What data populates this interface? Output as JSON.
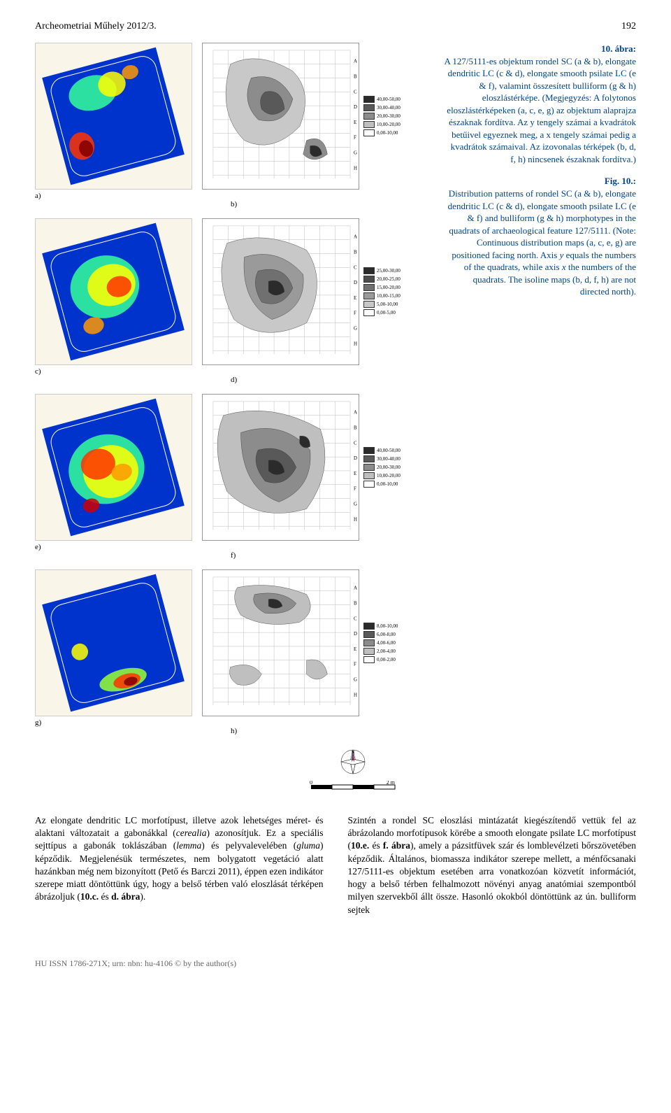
{
  "header": {
    "journal": "Archeometriai Műhely 2012/3.",
    "page": "192"
  },
  "panels": {
    "a": {
      "label": "a)",
      "bg": "#f9f5e9"
    },
    "b": {
      "label": "b)",
      "legend": [
        {
          "c": "#2b2b2b",
          "t": "40,00-50,00"
        },
        {
          "c": "#595959",
          "t": "30,00-40,00"
        },
        {
          "c": "#8c8c8c",
          "t": "20,00-30,00"
        },
        {
          "c": "#bfbfbf",
          "t": "10,00-20,00"
        },
        {
          "c": "#ffffff",
          "t": "0,00-10,00"
        }
      ]
    },
    "c": {
      "label": "c)",
      "bg": "#f9f5e9"
    },
    "d": {
      "label": "d)",
      "legend": [
        {
          "c": "#2b2b2b",
          "t": "25,00-30,00"
        },
        {
          "c": "#4d4d4d",
          "t": "20,00-25,00"
        },
        {
          "c": "#707070",
          "t": "15,00-20,00"
        },
        {
          "c": "#9a9a9a",
          "t": "10,00-15,00"
        },
        {
          "c": "#c8c8c8",
          "t": "5,00-10,00"
        },
        {
          "c": "#ffffff",
          "t": "0,00-5,00"
        }
      ]
    },
    "e": {
      "label": "e)",
      "bg": "#f9f5e9"
    },
    "f": {
      "label": "f)",
      "legend": [
        {
          "c": "#2b2b2b",
          "t": "40,00-50,00"
        },
        {
          "c": "#595959",
          "t": "30,00-40,00"
        },
        {
          "c": "#8c8c8c",
          "t": "20,00-30,00"
        },
        {
          "c": "#bfbfbf",
          "t": "10,00-20,00"
        },
        {
          "c": "#ffffff",
          "t": "0,00-10,00"
        }
      ]
    },
    "g": {
      "label": "g)",
      "bg": "#f9f5e9"
    },
    "h": {
      "label": "h)",
      "legend": [
        {
          "c": "#2b2b2b",
          "t": "8,00-10,00"
        },
        {
          "c": "#595959",
          "t": "6,00-8,00"
        },
        {
          "c": "#8c8c8c",
          "t": "4,00-6,00"
        },
        {
          "c": "#bfbfbf",
          "t": "2,00-4,00"
        },
        {
          "c": "#ffffff",
          "t": "0,00-2,00"
        }
      ]
    }
  },
  "heatmap_palette": [
    "#000080",
    "#0033cc",
    "#0066ff",
    "#0099ff",
    "#00ccff",
    "#33ff99",
    "#99ff33",
    "#ffff00",
    "#ff9900",
    "#ff3300",
    "#cc0000",
    "#800000"
  ],
  "caption": {
    "hu_title": "10. ábra:",
    "hu_body": "A 127/5111-es objektum rondel SC (a & b), elongate dendritic LC (c & d), elongate smooth psilate LC (e & f), valamint összesített bulliform (g & h) eloszlástérképe. (Megjegyzés: A folytonos eloszlástérképeken (a, c, e, g) az objektum alaprajza északnak fordítva. Az y tengely számai a kvadrátok betűivel egyeznek meg, a x tengely számai pedig a kvadrátok számaival. Az izovonalas térképek (b, d, f, h) nincsenek északnak fordítva.)",
    "en_title": "Fig. 10.:",
    "en_body": "Distribution patterns of rondel SC (a & b), elongate dendritic LC (c & d), elongate smooth psilate LC (e & f) and bulliform (g & h) morphotypes in the quadrats of archaeological feature 127/5111. (Note: Continuous distribution maps (a, c, e, g) are positioned facing north. Axis y equals the numbers of the quadrats, while axis x the numbers of the quadrats. The isoline maps (b, d, f, h) are not directed north).",
    "en_body_italic_phrases": true
  },
  "scale": {
    "labels": [
      "0",
      "2 m"
    ]
  },
  "body": {
    "left": "Az elongate dendritic LC morfotípust, illetve azok lehetséges méret- és alaktani változatait a gabonákkal (cerealia) azonosítjuk. Ez a speciális sejttípus a gabonák toklászában (lemma) és pelyvalevelében (gluma) képződik. Megjelenésük természetes, nem bolygatott vegetáció alatt hazánkban még nem bizonyított (Pető és Barczi 2011), éppen ezen indikátor szerepe miatt döntöttünk úgy, hogy a belső térben való eloszlását térképen ábrázoljuk (10.c. és d. ábra).",
    "right": "Szintén a rondel SC eloszlási mintázatát kiegészítendő vettük fel az ábrázolando morfotípusok körébe a smooth elongate psilate LC morfotípust (10.e. és f. ábra), amely a pázsitfüvek szár és lomblevélzeti bőrszövetében képződik. Általános, biomassza indikátor szerepe mellett, a ménfőcsanaki 127/5111-es objektum esetében arra vonatkozóan közvetít információt, hogy a belső térben felhalmozott növényi anyag anatómiai szempontból milyen szervekből állt össze. Hasonló okokból döntöttünk az ún. bulliform sejtek"
  },
  "footer": {
    "text": "HU ISSN 1786-271X; urn: nbn: hu-4106 © by the author(s)"
  }
}
